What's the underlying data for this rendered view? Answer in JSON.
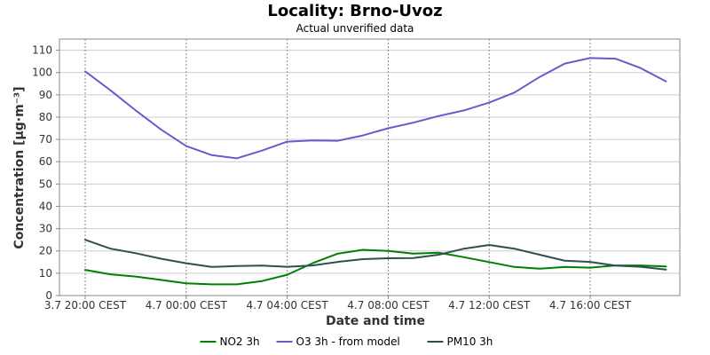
{
  "chart_data": {
    "type": "line",
    "title": "Locality: Brno-Uvoz",
    "subtitle": "Actual unverified data",
    "xlabel": "Date and time",
    "ylabel": "Concentration [µg·m⁻³]",
    "x_axis_type": "datetime",
    "x_ticks": [
      "3.7 20:00 CEST",
      "4.7 00:00 CEST",
      "4.7 04:00 CEST",
      "4.7 08:00 CEST",
      "4.7 12:00 CEST",
      "4.7 16:00 CEST"
    ],
    "x": [
      "3.7 20:00",
      "3.7 21:00",
      "3.7 22:00",
      "3.7 23:00",
      "4.7 00:00",
      "4.7 01:00",
      "4.7 02:00",
      "4.7 03:00",
      "4.7 04:00",
      "4.7 05:00",
      "4.7 06:00",
      "4.7 07:00",
      "4.7 08:00",
      "4.7 09:00",
      "4.7 10:00",
      "4.7 11:00",
      "4.7 12:00",
      "4.7 13:00",
      "4.7 14:00",
      "4.7 15:00",
      "4.7 16:00",
      "4.7 17:00",
      "4.7 18:00",
      "4.7 19:00"
    ],
    "ylim": [
      0,
      115
    ],
    "y_ticks": [
      0,
      10,
      20,
      30,
      40,
      50,
      60,
      70,
      80,
      90,
      100,
      110
    ],
    "grid": true,
    "legend_position": "bottom",
    "series": [
      {
        "name": "NO2 3h",
        "color": "#008000",
        "values": [
          11.5,
          9.5,
          8.5,
          7.0,
          5.5,
          5.0,
          5.0,
          6.5,
          9.3,
          14.5,
          18.8,
          20.5,
          20.0,
          18.8,
          19.2,
          17.2,
          15.0,
          12.8,
          12.0,
          12.8,
          12.5,
          13.5,
          13.5,
          13.0
        ]
      },
      {
        "name": "O3 3h - from model",
        "color": "#6a5acd",
        "values": [
          100.5,
          92.0,
          83.0,
          74.5,
          67.0,
          63.0,
          61.5,
          65.0,
          69.0,
          69.5,
          69.4,
          71.8,
          75.0,
          77.5,
          80.5,
          83.0,
          86.5,
          91.0,
          98.0,
          104.0,
          106.5,
          106.2,
          102.0,
          96.0
        ]
      },
      {
        "name": "PM10 3h",
        "color": "#2f4f4f",
        "values": [
          25.0,
          21.0,
          19.0,
          16.5,
          14.5,
          12.8,
          13.2,
          13.4,
          12.9,
          13.5,
          15.1,
          16.3,
          16.7,
          16.8,
          18.3,
          21.0,
          22.7,
          21.0,
          18.3,
          15.6,
          15.1,
          13.4,
          12.9,
          11.6
        ]
      }
    ]
  }
}
